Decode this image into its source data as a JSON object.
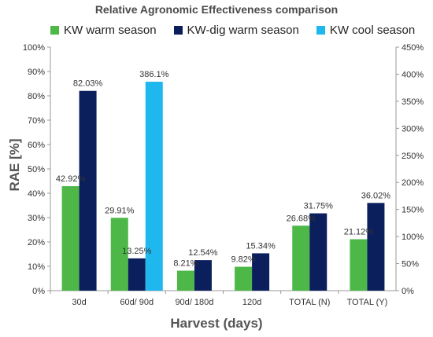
{
  "chart_data": {
    "type": "bar",
    "title": "Relative Agronomic  Effectiveness comparison",
    "ylabel": "RAE [%]",
    "xlabel": "Harvest (days)",
    "categories": [
      "30d",
      "60d/ 90d",
      "90d/ 180d",
      "120d",
      "TOTAL (N)",
      "TOTAL (Y)"
    ],
    "ylim": [
      0,
      100
    ],
    "y2lim": [
      0,
      450
    ],
    "ytick_labels": [
      "0%",
      "10%",
      "20%",
      "30%",
      "40%",
      "50%",
      "60%",
      "70%",
      "80%",
      "90%",
      "100%"
    ],
    "y2tick_labels": [
      "0%",
      "50%",
      "100%",
      "150%",
      "200%",
      "250%",
      "300%",
      "350%",
      "400%",
      "450%"
    ],
    "legend_position": "top",
    "grid": false,
    "series": [
      {
        "name": "KW warm season",
        "color": "#4db848",
        "axis": "left",
        "values": [
          42.92,
          29.91,
          8.21,
          9.82,
          26.68,
          21.12
        ],
        "labels": [
          "42.92%",
          "29.91%",
          "8.21%",
          "9.82%",
          "26.68%",
          "21.12%"
        ]
      },
      {
        "name": "KW-dig warm season",
        "color": "#0b1f5c",
        "axis": "left",
        "values": [
          82.03,
          13.25,
          12.54,
          15.34,
          31.75,
          36.02
        ],
        "labels": [
          "82.03%",
          "13.25%",
          "12.54%",
          "15.34%",
          "31.75%",
          "36.02%"
        ]
      },
      {
        "name": "KW cool season",
        "color": "#1fb8ee",
        "axis": "right",
        "values": [
          null,
          386.1,
          null,
          null,
          null,
          null
        ],
        "labels": [
          "",
          "386.1%",
          "",
          "",
          "",
          ""
        ]
      }
    ]
  }
}
